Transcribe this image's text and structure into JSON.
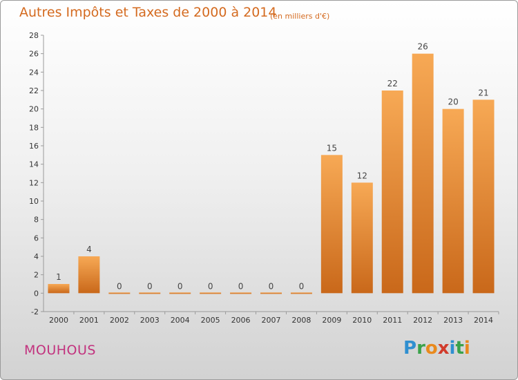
{
  "header": {
    "title": "Autres Impôts et Taxes de 2000 à 2014",
    "subtitle": "(en milliers d'€)"
  },
  "footer": {
    "commune": "MOUHOUS",
    "logo_letters": [
      {
        "ch": "P",
        "color": "#2f8fd0"
      },
      {
        "ch": "r",
        "color": "#3aa24a"
      },
      {
        "ch": "o",
        "color": "#e98a1d"
      },
      {
        "ch": "x",
        "color": "#d13b2b"
      },
      {
        "ch": "i",
        "color": "#2f8fd0"
      },
      {
        "ch": "t",
        "color": "#3aa24a"
      },
      {
        "ch": "i",
        "color": "#e98a1d"
      }
    ]
  },
  "colors": {
    "bar_light": "#f7a955",
    "bar_dark": "#c9681a",
    "accent": "#d46a1f"
  },
  "chart_data": {
    "type": "bar",
    "title": "Autres Impôts et Taxes de 2000 à 2014",
    "subtitle": "(en milliers d'€)",
    "categories": [
      "2000",
      "2001",
      "2002",
      "2003",
      "2004",
      "2005",
      "2006",
      "2007",
      "2008",
      "2009",
      "2010",
      "2011",
      "2012",
      "2013",
      "2014"
    ],
    "values": [
      1,
      4,
      0,
      0,
      0,
      0,
      0,
      0,
      0,
      15,
      12,
      22,
      26,
      20,
      21
    ],
    "data_labels": [
      "1",
      "4",
      "0",
      "0",
      "0",
      "0",
      "0",
      "0",
      "0",
      "15",
      "12",
      "22",
      "26",
      "20",
      "21"
    ],
    "ylim": [
      -2,
      28
    ],
    "yticks": [
      -2,
      0,
      2,
      4,
      6,
      8,
      10,
      12,
      14,
      16,
      18,
      20,
      22,
      24,
      26,
      28
    ],
    "grid": false,
    "legend": "none"
  }
}
